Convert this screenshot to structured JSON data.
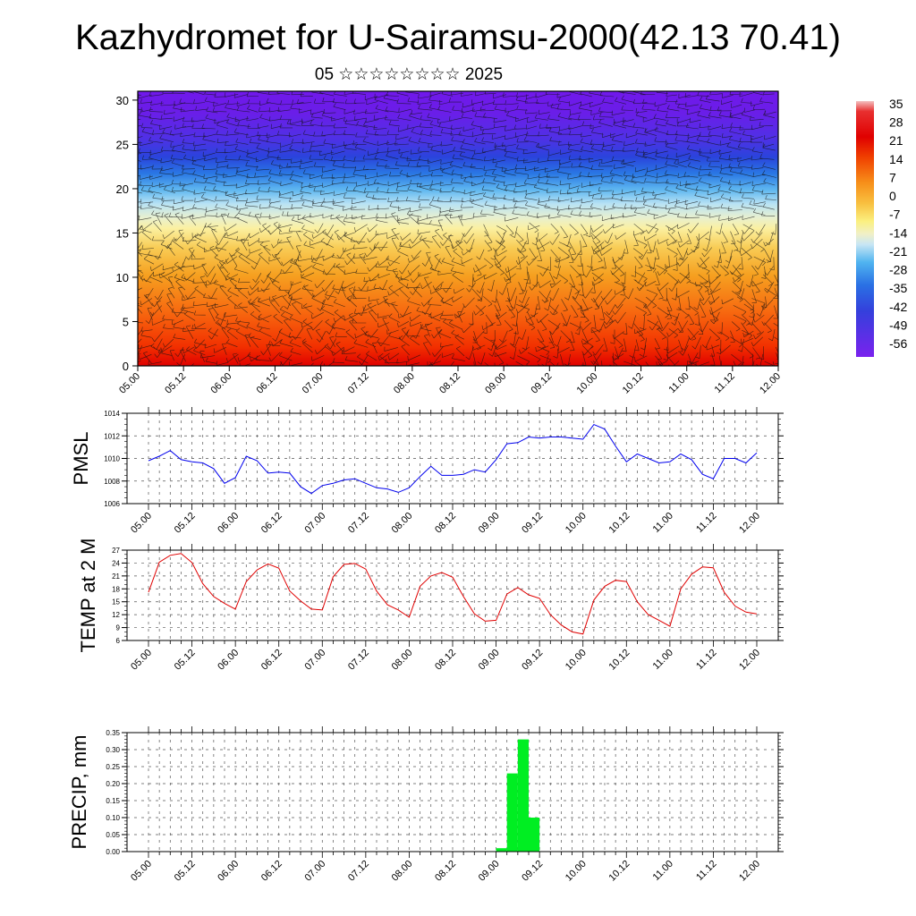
{
  "header": {
    "title": "Kazhydromet for U-Sairamsu-2000(42.13 70.41)",
    "subtitle": "05 ☆☆☆☆☆☆☆☆ 2025"
  },
  "chart_data": [
    {
      "id": "cross_section",
      "type": "heatmap",
      "title": "",
      "xlabel": "",
      "ylabel": "",
      "x_ticks": [
        "05.00",
        "05.12",
        "06.00",
        "06.12",
        "07.00",
        "07.12",
        "08.00",
        "08.12",
        "09.00",
        "09.12",
        "10.00",
        "10.12",
        "11.00",
        "11.12",
        "12.00"
      ],
      "y_ticks": [
        0,
        5,
        10,
        15,
        20,
        25,
        30
      ],
      "ylim": [
        0,
        31
      ],
      "variable": "temperature",
      "overlay": "wind barbs",
      "colorbar": {
        "labels": [
          35,
          28,
          21,
          14,
          7,
          0,
          -7,
          -14,
          -21,
          -28,
          -35,
          -42,
          -49,
          -56
        ],
        "range": [
          -60,
          38
        ]
      }
    },
    {
      "id": "pmsl",
      "type": "line",
      "ylabel": "PMSL",
      "ylim": [
        1006,
        1014
      ],
      "y_ticks": [
        1006,
        1008,
        1010,
        1012,
        1014
      ],
      "x_ticks": [
        "05.00",
        "05.12",
        "06.00",
        "06.12",
        "07.00",
        "07.12",
        "08.00",
        "08.12",
        "09.00",
        "09.12",
        "10.00",
        "10.12",
        "11.00",
        "11.12",
        "12.00"
      ],
      "line_color": "#0000ee",
      "series": [
        {
          "values": [
            1009.8,
            1010.2,
            1010.7,
            1009.9,
            1009.7,
            1009.6,
            1009.1,
            1007.8,
            1008.3,
            1010.2,
            1009.8,
            1008.7,
            1008.8,
            1008.7,
            1007.5,
            1006.9,
            1007.6,
            1007.8,
            1008.1,
            1008.2,
            1007.8,
            1007.4,
            1007.3,
            1007.0,
            1007.4,
            1008.4,
            1009.3,
            1008.5,
            1008.5,
            1008.6,
            1009.0,
            1008.8,
            1009.9,
            1011.3,
            1011.4,
            1011.9,
            1011.8,
            1011.9,
            1011.9,
            1011.8,
            1011.7,
            1013.0,
            1012.6,
            1011.1,
            1009.7,
            1010.4,
            1010.0,
            1009.6,
            1009.7,
            1010.4,
            1009.9,
            1008.6,
            1008.2,
            1010.0,
            1010.0,
            1009.6,
            1010.5
          ]
        }
      ]
    },
    {
      "id": "temp2m",
      "type": "line",
      "ylabel": "TEMP at 2 M",
      "ylim": [
        6,
        27
      ],
      "y_ticks": [
        6,
        9,
        12,
        15,
        18,
        21,
        24,
        27
      ],
      "x_ticks": [
        "05.00",
        "05.12",
        "06.00",
        "06.12",
        "07.00",
        "07.12",
        "08.00",
        "08.12",
        "09.00",
        "09.12",
        "10.00",
        "10.12",
        "11.00",
        "11.12",
        "12.00"
      ],
      "line_color": "#e00000",
      "series": [
        {
          "values": [
            17.2,
            24.2,
            25.8,
            26.2,
            24.1,
            19.2,
            16.2,
            14.6,
            13.3,
            19.7,
            22.4,
            23.8,
            22.8,
            17.5,
            15.2,
            13.3,
            13.1,
            20.8,
            23.7,
            23.9,
            22.6,
            17.5,
            14.3,
            13.1,
            11.4,
            18.6,
            21.0,
            21.8,
            20.7,
            16.2,
            12.2,
            10.5,
            10.7,
            16.8,
            18.3,
            16.6,
            15.8,
            12.0,
            9.6,
            8.0,
            7.5,
            15.4,
            18.6,
            20.0,
            19.7,
            15.0,
            12.0,
            10.7,
            9.3,
            18.0,
            21.4,
            23.1,
            22.9,
            17.2,
            14.0,
            12.6,
            12.2
          ]
        }
      ]
    },
    {
      "id": "precip",
      "type": "bar",
      "ylabel": "PRECIP, mm",
      "ylim": [
        0,
        0.35
      ],
      "y_ticks": [
        "0.00",
        "0.05",
        "0.10",
        "0.15",
        "0.20",
        "0.25",
        "0.30",
        "0.35"
      ],
      "x_ticks": [
        "05.00",
        "05.12",
        "06.00",
        "06.12",
        "07.00",
        "07.12",
        "08.00",
        "08.12",
        "09.00",
        "09.12",
        "10.00",
        "10.12",
        "11.00",
        "11.12",
        "12.00"
      ],
      "bar_color": "#00ee22",
      "series": [
        {
          "x_hours": [
            96,
            99,
            102,
            105
          ],
          "values": [
            0.01,
            0.23,
            0.33,
            0.1
          ]
        }
      ]
    }
  ]
}
